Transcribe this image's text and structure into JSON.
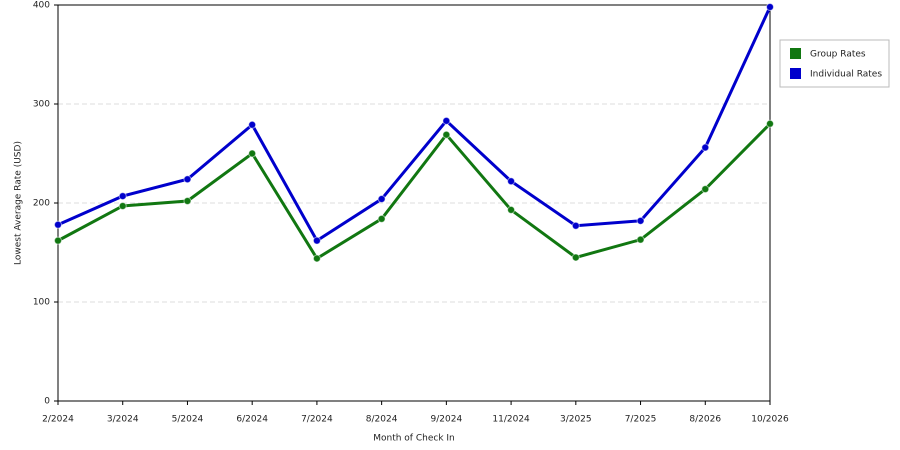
{
  "chart_data": {
    "type": "line",
    "x_label": "Month of Check In",
    "y_label": "Lowest Average Rate (USD)",
    "categories": [
      "2/2024",
      "3/2024",
      "5/2024",
      "6/2024",
      "7/2024",
      "8/2024",
      "9/2024",
      "11/2024",
      "3/2025",
      "7/2025",
      "8/2026",
      "10/2026"
    ],
    "series": [
      {
        "name": "Group Rates",
        "color": "#117711",
        "values": [
          162,
          197,
          202,
          250,
          144,
          184,
          269,
          193,
          145,
          163,
          214,
          280
        ]
      },
      {
        "name": "Individual Rates",
        "color": "#0000cc",
        "values": [
          178,
          207,
          224,
          279,
          162,
          204,
          283,
          222,
          177,
          182,
          256,
          398
        ]
      }
    ],
    "ylim": [
      0,
      400
    ],
    "yticks": [
      0,
      100,
      200,
      300,
      400
    ],
    "grid": true,
    "legend": "top-right"
  }
}
